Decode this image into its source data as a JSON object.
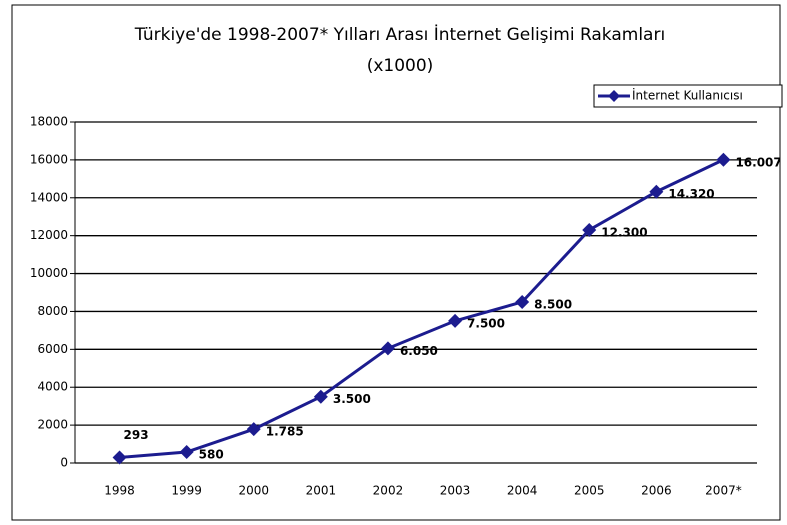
{
  "chart_data": {
    "type": "line",
    "title": "Türkiye'de 1998-2007* Yılları Arası İnternet Gelişimi Rakamları",
    "subtitle": "(x1000)",
    "categories": [
      "1998",
      "1999",
      "2000",
      "2001",
      "2002",
      "2003",
      "2004",
      "2005",
      "2006",
      "2007*"
    ],
    "series": [
      {
        "name": "İnternet Kullanıcısı",
        "color": "#1c1c8f",
        "values": [
          293,
          580,
          1785,
          3500,
          6050,
          7500,
          8500,
          12300,
          14320,
          16007
        ],
        "value_labels": [
          "293",
          "580",
          "1.785",
          "3.500",
          "6.050",
          "7.500",
          "8.500",
          "12.300",
          "14.320",
          "16.007"
        ]
      }
    ],
    "ylim": [
      0,
      18000
    ],
    "yticks": [
      0,
      2000,
      4000,
      6000,
      8000,
      10000,
      12000,
      14000,
      16000,
      18000
    ],
    "grid": true,
    "legend": "top-right"
  }
}
